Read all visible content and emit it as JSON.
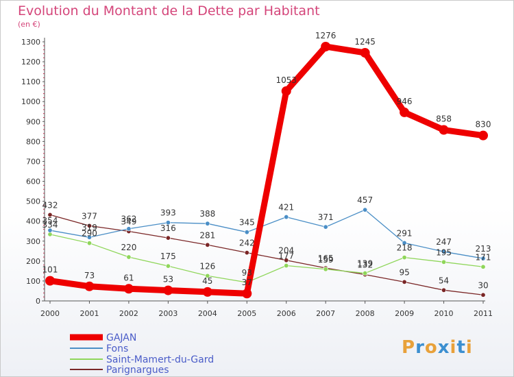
{
  "header": {
    "title": "Evolution du Montant de la Dette par Habitant",
    "subtitle": "(en €)"
  },
  "brand": {
    "text": "Proxiti",
    "colors": [
      "#e8a13a",
      "#3c8fd0",
      "#e8a13a",
      "#3c8fd0",
      "#e8a13a",
      "#3c8fd0",
      "#e8a13a"
    ]
  },
  "chart_data": {
    "type": "line",
    "x": [
      "2000",
      "2001",
      "2002",
      "2003",
      "2004",
      "2005",
      "2006",
      "2007",
      "2008",
      "2009",
      "2010",
      "2011"
    ],
    "ylim": [
      0,
      1300
    ],
    "yticks": [
      0,
      100,
      200,
      300,
      400,
      500,
      600,
      700,
      800,
      900,
      1000,
      1100,
      1200,
      1300
    ],
    "grid": false,
    "legend_position": "bottom-left",
    "series": [
      {
        "name": "GAJAN",
        "color": "#ee0000",
        "values": [
          101,
          73,
          61,
          53,
          45,
          37,
          1053,
          1276,
          1245,
          946,
          858,
          830
        ]
      },
      {
        "name": "Fons",
        "color": "#4a8ec6",
        "values": [
          354,
          319,
          362,
          393,
          388,
          345,
          421,
          371,
          457,
          291,
          247,
          213
        ]
      },
      {
        "name": "Saint-Mamert-du-Gard",
        "color": "#8fd65a",
        "values": [
          334,
          290,
          220,
          175,
          126,
          93,
          177,
          159,
          139,
          218,
          195,
          171
        ]
      },
      {
        "name": "Parignargues",
        "color": "#7a2626",
        "values": [
          432,
          377,
          349,
          316,
          281,
          242,
          204,
          165,
          132,
          95,
          54,
          30
        ]
      }
    ]
  }
}
